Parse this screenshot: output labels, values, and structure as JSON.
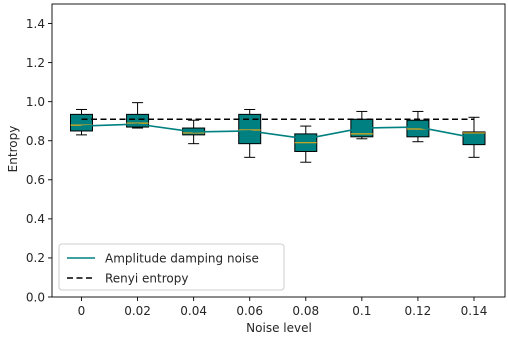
{
  "chart_data": {
    "type": "box",
    "xlabel": "Noise level",
    "ylabel": "Entropy",
    "ylim": [
      0,
      1.5
    ],
    "yticks": [
      "0.0",
      "0.2",
      "0.4",
      "0.6",
      "0.8",
      "1.0",
      "1.2",
      "1.4"
    ],
    "ytick_values": [
      0,
      0.2,
      0.4,
      0.6,
      0.8,
      1.0,
      1.2,
      1.4
    ],
    "categories": [
      "0",
      "0.02",
      "0.04",
      "0.06",
      "0.08",
      "0.1",
      "0.12",
      "0.14"
    ],
    "boxes": [
      {
        "whislo": 0.83,
        "q1": 0.85,
        "med": 0.88,
        "q3": 0.935,
        "whishi": 0.96
      },
      {
        "whislo": 0.865,
        "q1": 0.87,
        "med": 0.89,
        "q3": 0.935,
        "whishi": 0.995
      },
      {
        "whislo": 0.785,
        "q1": 0.83,
        "med": 0.84,
        "q3": 0.865,
        "whishi": 0.905
      },
      {
        "whislo": 0.715,
        "q1": 0.785,
        "med": 0.855,
        "q3": 0.935,
        "whishi": 0.96
      },
      {
        "whislo": 0.69,
        "q1": 0.745,
        "med": 0.79,
        "q3": 0.835,
        "whishi": 0.875
      },
      {
        "whislo": 0.81,
        "q1": 0.82,
        "med": 0.835,
        "q3": 0.91,
        "whishi": 0.95
      },
      {
        "whislo": 0.795,
        "q1": 0.82,
        "med": 0.86,
        "q3": 0.905,
        "whishi": 0.95
      },
      {
        "whislo": 0.715,
        "q1": 0.78,
        "med": 0.84,
        "q3": 0.845,
        "whishi": 0.92
      }
    ],
    "series": [
      {
        "name": "Amplitude damping noise",
        "style": "solid",
        "color": "#008080",
        "values": [
          0.875,
          0.885,
          0.845,
          0.85,
          0.81,
          0.865,
          0.87,
          0.815
        ]
      },
      {
        "name": "Renyi entropy",
        "style": "dashed",
        "color": "#000000",
        "values": [
          0.91,
          0.91,
          0.91,
          0.91,
          0.91,
          0.91,
          0.91,
          0.91
        ]
      }
    ],
    "box_color": "#008080",
    "median_color": "#e6a817",
    "legend_position": "lower-left",
    "grid": false
  }
}
